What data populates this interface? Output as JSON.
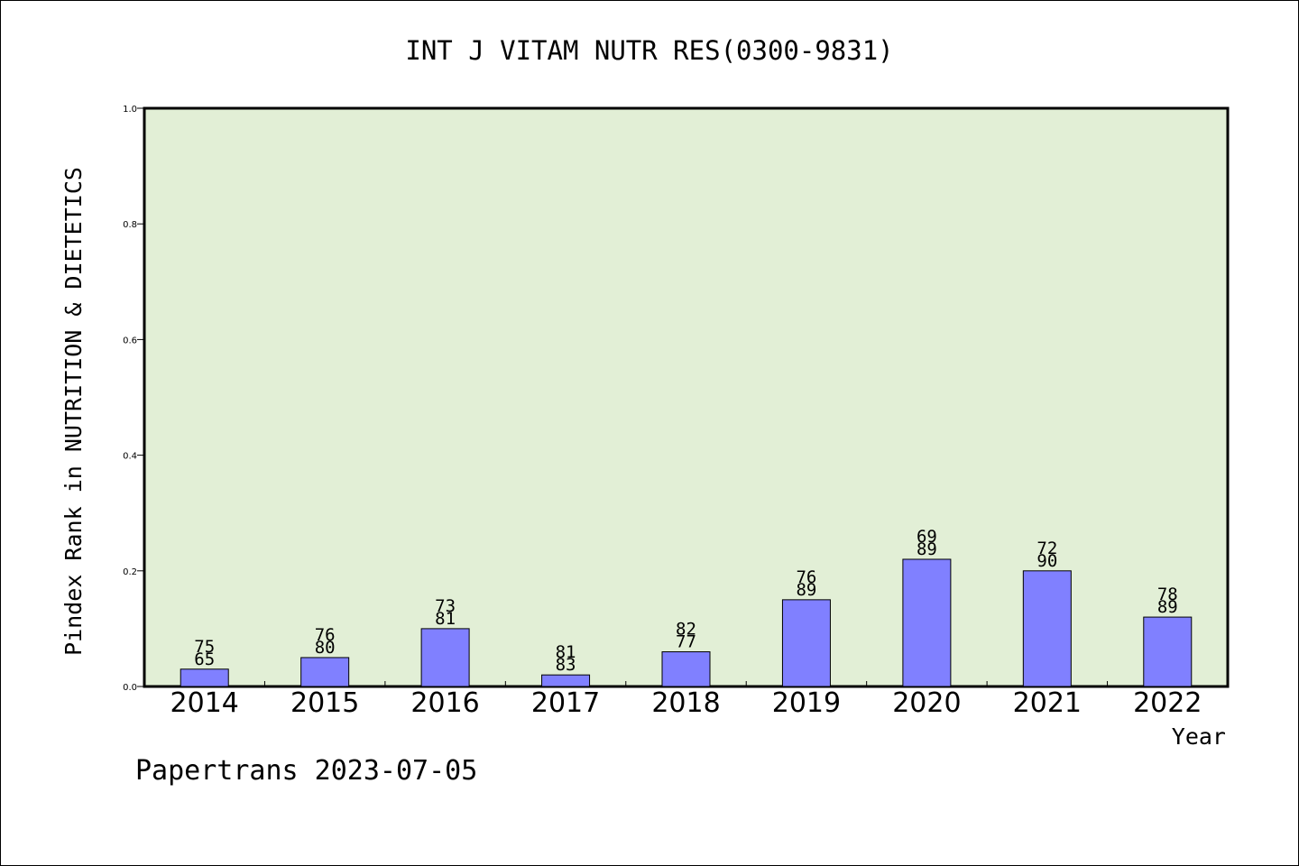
{
  "chart_data": {
    "type": "bar",
    "title": "INT J VITAM NUTR RES(0300-9831)",
    "ylabel": "Pindex Rank in NUTRITION & DIETETICS",
    "xlabel": "Year",
    "footer": "Papertrans 2023-07-05",
    "ylim": [
      0,
      1.0
    ],
    "yticks": [
      "0.0",
      "0.2",
      "0.4",
      "0.6",
      "0.8",
      "1.0"
    ],
    "grid": false,
    "categories": [
      "2014",
      "2015",
      "2016",
      "2017",
      "2018",
      "2019",
      "2020",
      "2021",
      "2022"
    ],
    "values": [
      0.03,
      0.05,
      0.1,
      0.02,
      0.06,
      0.15,
      0.22,
      0.2,
      0.12
    ],
    "labels_top": [
      "75",
      "76",
      "73",
      "81",
      "82",
      "76",
      "69",
      "72",
      "78"
    ],
    "labels_bottom": [
      "65",
      "80",
      "81",
      "83",
      "77",
      "89",
      "89",
      "90",
      "89"
    ],
    "colors": {
      "plot_background": "#e2efd6",
      "bar_fill": "#8080ff",
      "bar_stroke": "#000000"
    }
  }
}
